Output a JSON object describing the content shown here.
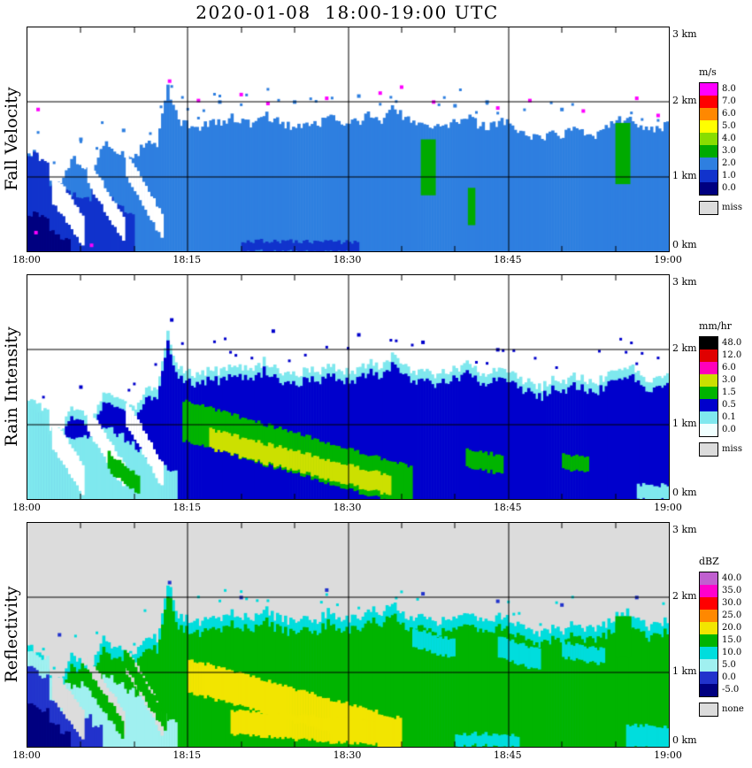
{
  "chart_data": {
    "type": "heatmap",
    "title": "2020-01-08  18:00-19:00 UTC",
    "x_axis": {
      "ticks": [
        "18:00",
        "18:15",
        "18:30",
        "18:45",
        "19:00"
      ],
      "tick_minutes": [
        0,
        15,
        30,
        45,
        60
      ],
      "range_minutes": [
        0,
        60
      ],
      "minor_tick_minutes": 5
    },
    "y_axis": {
      "ticks": [
        "0 km",
        "1 km",
        "2 km",
        "3 km"
      ],
      "tick_km": [
        0,
        1,
        2,
        3
      ],
      "range_km": [
        0,
        3
      ]
    },
    "grid": {
      "h_lines_km": [
        1,
        2
      ],
      "v_lines_min": [
        15,
        30,
        45
      ]
    },
    "echo_top_km": [
      1.35,
      1.25,
      0.95,
      0.9,
      1.25,
      1.15,
      1.1,
      1.45,
      1.35,
      1.3,
      1.25,
      1.5,
      1.45,
      2.2,
      1.75,
      1.7,
      1.65,
      1.75,
      1.7,
      1.8,
      1.75,
      1.7,
      1.85,
      1.75,
      1.7,
      1.65,
      1.75,
      1.7,
      1.8,
      1.75,
      1.7,
      1.75,
      1.85,
      1.75,
      1.95,
      1.8,
      1.7,
      1.75,
      1.65,
      1.7,
      1.75,
      1.8,
      1.7,
      1.65,
      1.75,
      1.7,
      1.6,
      1.55,
      1.5,
      1.6,
      1.55,
      1.65,
      1.6,
      1.55,
      1.65,
      1.75,
      1.8,
      1.7,
      1.6,
      1.65
    ],
    "gaps": [
      {
        "t0": 2.3,
        "t1": 5.2,
        "c0": 0.85,
        "c1": 0.25,
        "hw": 0.2
      },
      {
        "t0": 5.6,
        "t1": 9.0,
        "c0": 1.05,
        "c1": 0.28,
        "hw": 0.16
      },
      {
        "t0": 9.2,
        "t1": 12.6,
        "c0": 1.15,
        "c1": 0.3,
        "hw": 0.16
      }
    ],
    "panels": [
      {
        "id": "fall_velocity",
        "label": "Fall Velocity",
        "background": "#FFFFFF",
        "edge_speck_color": "#2E7FE0",
        "colorbar": {
          "title": "m/s",
          "cells": [
            {
              "label": "8.0",
              "color": "#FF00FF"
            },
            {
              "label": "7.0",
              "color": "#FF0000"
            },
            {
              "label": "6.0",
              "color": "#FF8800"
            },
            {
              "label": "5.0",
              "color": "#FFFF00"
            },
            {
              "label": "4.0",
              "color": "#88DD00"
            },
            {
              "label": "3.0",
              "color": "#00AA00"
            },
            {
              "label": "2.0",
              "color": "#2E7FE0"
            },
            {
              "label": "1.0",
              "color": "#1133CC"
            },
            {
              "label": "0.0",
              "color": "#000080"
            }
          ],
          "missing": {
            "label": "miss",
            "color": "#DCDCDC"
          }
        },
        "layers": [
          {
            "type": "echo",
            "offset": 0,
            "color": "#2E7FE0"
          },
          {
            "type": "cols",
            "t0": 0,
            "tops": [
              1.3,
              1.2,
              0.85,
              0.8,
              0.75,
              0.7,
              0.8,
              0.7,
              0.6,
              0.5
            ],
            "color": "#1133CC"
          },
          {
            "type": "cols",
            "t0": 0,
            "tops": [
              0.5,
              0.45,
              0.25,
              0.15
            ],
            "color": "#000080"
          },
          {
            "type": "strip",
            "t0": 20,
            "t1": 31,
            "c0": 0.07,
            "c1": 0.05,
            "hw": 0.07,
            "color": "#1133CC"
          },
          {
            "type": "gaps"
          },
          {
            "type": "vseg",
            "t0": 36.8,
            "t1": 38.2,
            "h0": 0.75,
            "h1": 1.5,
            "color": "#00AA00"
          },
          {
            "type": "vseg",
            "t0": 41.2,
            "t1": 41.9,
            "h0": 0.35,
            "h1": 0.85,
            "color": "#00AA00"
          },
          {
            "type": "vseg",
            "t0": 55.0,
            "t1": 56.4,
            "h0": 0.9,
            "h1": 1.72,
            "color": "#00AA00"
          },
          {
            "type": "specks",
            "color": "#FF00FF",
            "points": [
              [
                1,
                1.9
              ],
              [
                13.3,
                2.28
              ],
              [
                16,
                2.02
              ],
              [
                20,
                2.1
              ],
              [
                22.5,
                1.98
              ],
              [
                28,
                2.05
              ],
              [
                33,
                2.12
              ],
              [
                35,
                2.2
              ],
              [
                38,
                2.0
              ],
              [
                44,
                1.92
              ],
              [
                47,
                2.02
              ],
              [
                52,
                1.88
              ],
              [
                57,
                2.05
              ],
              [
                59,
                1.82
              ],
              [
                6,
                0.08
              ],
              [
                0.8,
                0.25
              ]
            ]
          },
          {
            "type": "specks",
            "color": "#2E7FE0",
            "points": [
              [
                5,
                1.5
              ],
              [
                9,
                1.62
              ],
              [
                18,
                2.0
              ],
              [
                25,
                2.0
              ],
              [
                31,
                2.08
              ],
              [
                40,
                1.95
              ],
              [
                43,
                2.0
              ],
              [
                50,
                1.9
              ]
            ]
          }
        ]
      },
      {
        "id": "rain_intensity",
        "label": "Rain Intensity",
        "background": "#FFFFFF",
        "edge_speck_color": "#0000CC",
        "colorbar": {
          "title": "mm/hr",
          "cells": [
            {
              "label": "48.0",
              "color": "#000000"
            },
            {
              "label": "12.0",
              "color": "#E00000"
            },
            {
              "label": "6.0",
              "color": "#FF00BB"
            },
            {
              "label": "3.0",
              "color": "#CCE000"
            },
            {
              "label": "1.5",
              "color": "#00B400"
            },
            {
              "label": "0.5",
              "color": "#0000CC"
            },
            {
              "label": "0.1",
              "color": "#7FE8EE"
            },
            {
              "label": "0.0",
              "color": "#F0FFFF"
            }
          ],
          "missing": {
            "label": "miss",
            "color": "#DCDCDC"
          }
        },
        "layers": [
          {
            "type": "echo",
            "offset": 0,
            "color": "#7FE8EE"
          },
          {
            "type": "echo",
            "offset": -0.13,
            "color": "#0000CC"
          },
          {
            "type": "cols",
            "t0": 0,
            "tops": [
              1.25,
              1.2,
              0.9,
              0.85,
              0.8,
              0.85,
              0.9,
              0.95,
              0.85,
              0.75,
              0.65,
              0.55,
              0.45,
              0.35
            ],
            "color": "#7FE8EE"
          },
          {
            "type": "gaps"
          },
          {
            "type": "strip",
            "t0": 7.5,
            "t1": 10.5,
            "c0": 0.5,
            "c1": 0.15,
            "hw": 0.12,
            "color": "#00B400"
          },
          {
            "type": "strip",
            "t0": 14.5,
            "t1": 36,
            "c0": 1.05,
            "c1": 0.15,
            "hw": 0.27,
            "color": "#00B400"
          },
          {
            "type": "strip",
            "t0": 17,
            "t1": 34,
            "c0": 0.8,
            "c1": 0.18,
            "hw": 0.13,
            "color": "#CCE000"
          },
          {
            "type": "strip",
            "t0": 41,
            "t1": 44.5,
            "c0": 0.55,
            "c1": 0.45,
            "hw": 0.12,
            "color": "#00B400"
          },
          {
            "type": "strip",
            "t0": 50,
            "t1": 52.5,
            "c0": 0.5,
            "c1": 0.44,
            "hw": 0.1,
            "color": "#00B400"
          },
          {
            "type": "strip",
            "t0": 57,
            "t1": 60,
            "c0": 0.1,
            "c1": 0.08,
            "hw": 0.1,
            "color": "#7FE8EE"
          },
          {
            "type": "specks",
            "color": "#0000CC",
            "points": [
              [
                13.5,
                2.4
              ],
              [
                23,
                2.25
              ],
              [
                31,
                2.2
              ],
              [
                37,
                2.1
              ],
              [
                44,
                2.0
              ],
              [
                5,
                1.5
              ]
            ]
          }
        ]
      },
      {
        "id": "reflectivity",
        "label": "Reflectivity",
        "background": "#DCDCDC",
        "edge_speck_color": "#00DDDD",
        "colorbar": {
          "title": "dBZ",
          "cells": [
            {
              "label": "40.0",
              "color": "#C060D0"
            },
            {
              "label": "35.0",
              "color": "#FF00CC"
            },
            {
              "label": "30.0",
              "color": "#FF0000"
            },
            {
              "label": "25.0",
              "color": "#FF8800"
            },
            {
              "label": "20.0",
              "color": "#F2E500"
            },
            {
              "label": "15.0",
              "color": "#00B400"
            },
            {
              "label": "10.0",
              "color": "#00DDDD"
            },
            {
              "label": "5.0",
              "color": "#A0F0F0"
            },
            {
              "label": "0.0",
              "color": "#2233CC"
            },
            {
              "label": "-5.0",
              "color": "#000080"
            }
          ],
          "missing": {
            "label": "none",
            "color": "#DCDCDC"
          }
        },
        "layers": [
          {
            "type": "echo",
            "offset": 0,
            "color": "#00DDDD"
          },
          {
            "type": "echo",
            "offset": -0.15,
            "color": "#00B400"
          },
          {
            "type": "cols",
            "t0": 0,
            "tops": [
              1.25,
              1.2,
              0.9,
              0.85,
              0.8,
              0.85,
              0.9,
              0.95,
              0.85,
              0.75,
              0.65,
              0.55,
              0.45,
              0.35
            ],
            "color": "#A0F0F0"
          },
          {
            "type": "cols",
            "t0": 0,
            "tops": [
              1.05,
              0.95,
              0.6,
              0.5,
              0.45,
              0.4,
              0.3
            ],
            "color": "#2233CC"
          },
          {
            "type": "cols",
            "t0": 0,
            "tops": [
              0.55,
              0.5,
              0.3,
              0.2
            ],
            "color": "#000080"
          },
          {
            "type": "gaps"
          },
          {
            "type": "strip",
            "t0": 5,
            "t1": 9,
            "c0": 1.0,
            "c1": 0.2,
            "hw": 0.12,
            "color": "#00B400"
          },
          {
            "type": "strip",
            "t0": 9,
            "t1": 13,
            "c0": 1.2,
            "c1": 0.25,
            "hw": 0.12,
            "color": "#00B400"
          },
          {
            "type": "strip",
            "t0": 15,
            "t1": 35,
            "c0": 0.95,
            "c1": 0.15,
            "hw": 0.22,
            "color": "#F2E500"
          },
          {
            "type": "strip",
            "t0": 19,
            "t1": 33,
            "c0": 0.32,
            "c1": 0.18,
            "hw": 0.16,
            "color": "#F2E500"
          },
          {
            "type": "strip",
            "t0": 36,
            "t1": 40,
            "c0": 1.45,
            "c1": 1.3,
            "hw": 0.12,
            "color": "#00DDDD"
          },
          {
            "type": "strip",
            "t0": 44,
            "t1": 48,
            "c0": 1.35,
            "c1": 1.15,
            "hw": 0.14,
            "color": "#00DDDD"
          },
          {
            "type": "strip",
            "t0": 50,
            "t1": 54,
            "c0": 1.3,
            "c1": 1.2,
            "hw": 0.1,
            "color": "#00DDDD"
          },
          {
            "type": "strip",
            "t0": 40,
            "t1": 46,
            "c0": 0.1,
            "c1": 0.08,
            "hw": 0.08,
            "color": "#00DDDD"
          },
          {
            "type": "strip",
            "t0": 56,
            "t1": 60,
            "c0": 0.15,
            "c1": 0.1,
            "hw": 0.15,
            "color": "#00DDDD"
          },
          {
            "type": "vseg",
            "t0": 55,
            "t1": 56.5,
            "h0": 1.2,
            "h1": 1.75,
            "color": "#00B400"
          },
          {
            "type": "specks",
            "color": "#2233CC",
            "points": [
              [
                3,
                1.5
              ],
              [
                13.3,
                2.2
              ],
              [
                20,
                2.0
              ],
              [
                28,
                2.1
              ],
              [
                37,
                2.05
              ],
              [
                44,
                1.95
              ],
              [
                50,
                1.9
              ],
              [
                57,
                2.0
              ]
            ]
          }
        ]
      }
    ]
  }
}
